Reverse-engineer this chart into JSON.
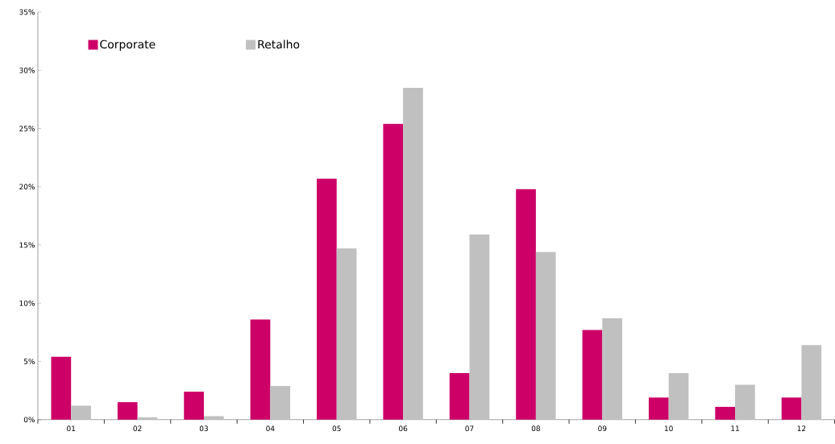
{
  "chart_data": {
    "type": "bar",
    "categories": [
      "01",
      "02",
      "03",
      "04",
      "05",
      "06",
      "07",
      "08",
      "09",
      "10",
      "11",
      "12"
    ],
    "series": [
      {
        "name": "Corporate",
        "color": "#cc0066",
        "values": [
          5.4,
          1.5,
          2.4,
          8.6,
          20.7,
          25.4,
          4.0,
          19.8,
          7.7,
          1.9,
          1.1,
          1.9
        ]
      },
      {
        "name": "Retalho",
        "color": "#c0c0c0",
        "values": [
          1.2,
          0.2,
          0.3,
          2.9,
          14.7,
          28.5,
          15.9,
          14.4,
          8.7,
          4.0,
          3.0,
          6.4
        ]
      }
    ],
    "ylim": [
      0,
      35
    ],
    "yticks": [
      {
        "value": 0,
        "label": "0%"
      },
      {
        "value": 5,
        "label": "5%"
      },
      {
        "value": 10,
        "label": "10%"
      },
      {
        "value": 15,
        "label": "15%"
      },
      {
        "value": 20,
        "label": "20%"
      },
      {
        "value": 25,
        "label": "25%"
      },
      {
        "value": 30,
        "label": "30%"
      },
      {
        "value": 35,
        "label": "35%"
      }
    ],
    "grid": false,
    "legend": "top left"
  }
}
